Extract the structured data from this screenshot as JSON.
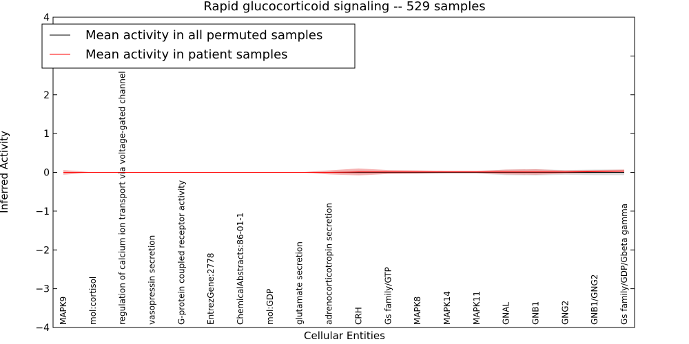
{
  "chart_data": {
    "type": "line",
    "title": "Rapid glucocorticoid signaling -- 529 samples",
    "xlabel": "Cellular Entities",
    "ylabel": "Inferred Activity",
    "ylim": [
      -4,
      4
    ],
    "yticks": [
      4,
      3,
      2,
      1,
      0,
      -1,
      -2,
      -3,
      -4
    ],
    "ytick_labels": [
      "4",
      "3",
      "2",
      "1",
      "0",
      "−1",
      "−2",
      "−3",
      "−4"
    ],
    "categories": [
      "MAPK9",
      "mol:cortisol",
      "regulation of calcium ion transport via voltage-gated channel activity",
      "vasopressin secretion",
      "G-protein coupled receptor activity",
      "EntrezGene:2778",
      "ChemicalAbstracts:86-01-1",
      "mol:GDP",
      "glutamate secretion",
      "adrenocorticotropin secretion",
      "CRH",
      "Gs family/GTP",
      "MAPK8",
      "MAPK14",
      "MAPK11",
      "GNAL",
      "GNB1",
      "GNG2",
      "GNB1/GNG2",
      "Gs family/GDP/Gbeta gamma"
    ],
    "series": [
      {
        "name": "Mean activity in all permuted samples",
        "color": "#000000",
        "values": [
          0,
          0,
          0,
          0,
          0,
          0,
          0,
          0,
          0,
          0,
          0,
          0,
          0,
          0,
          0,
          0,
          0,
          0,
          0,
          0
        ],
        "band": [
          0.01,
          0.005,
          0.005,
          0.005,
          0.005,
          0.005,
          0.005,
          0.005,
          0.005,
          0.02,
          0.05,
          0.04,
          0.04,
          0.03,
          0.03,
          0.07,
          0.08,
          0.06,
          0.07,
          0.07
        ],
        "band_color": "#999999"
      },
      {
        "name": "Mean activity in patient samples",
        "color": "#ff0000",
        "values": [
          0,
          0,
          0,
          0,
          0,
          0,
          0,
          0,
          0,
          0,
          0.01,
          0.01,
          0.01,
          0.01,
          0.01,
          0.01,
          0.01,
          0.01,
          0.02,
          0.03
        ],
        "band": [
          0.06,
          0.005,
          0.005,
          0.005,
          0.005,
          0.005,
          0.005,
          0.005,
          0.005,
          0.05,
          0.09,
          0.05,
          0.04,
          0.03,
          0.03,
          0.06,
          0.07,
          0.04,
          0.04,
          0.04
        ],
        "band_color": "#f08080"
      }
    ],
    "legend_position": "top-left",
    "grid": false
  }
}
